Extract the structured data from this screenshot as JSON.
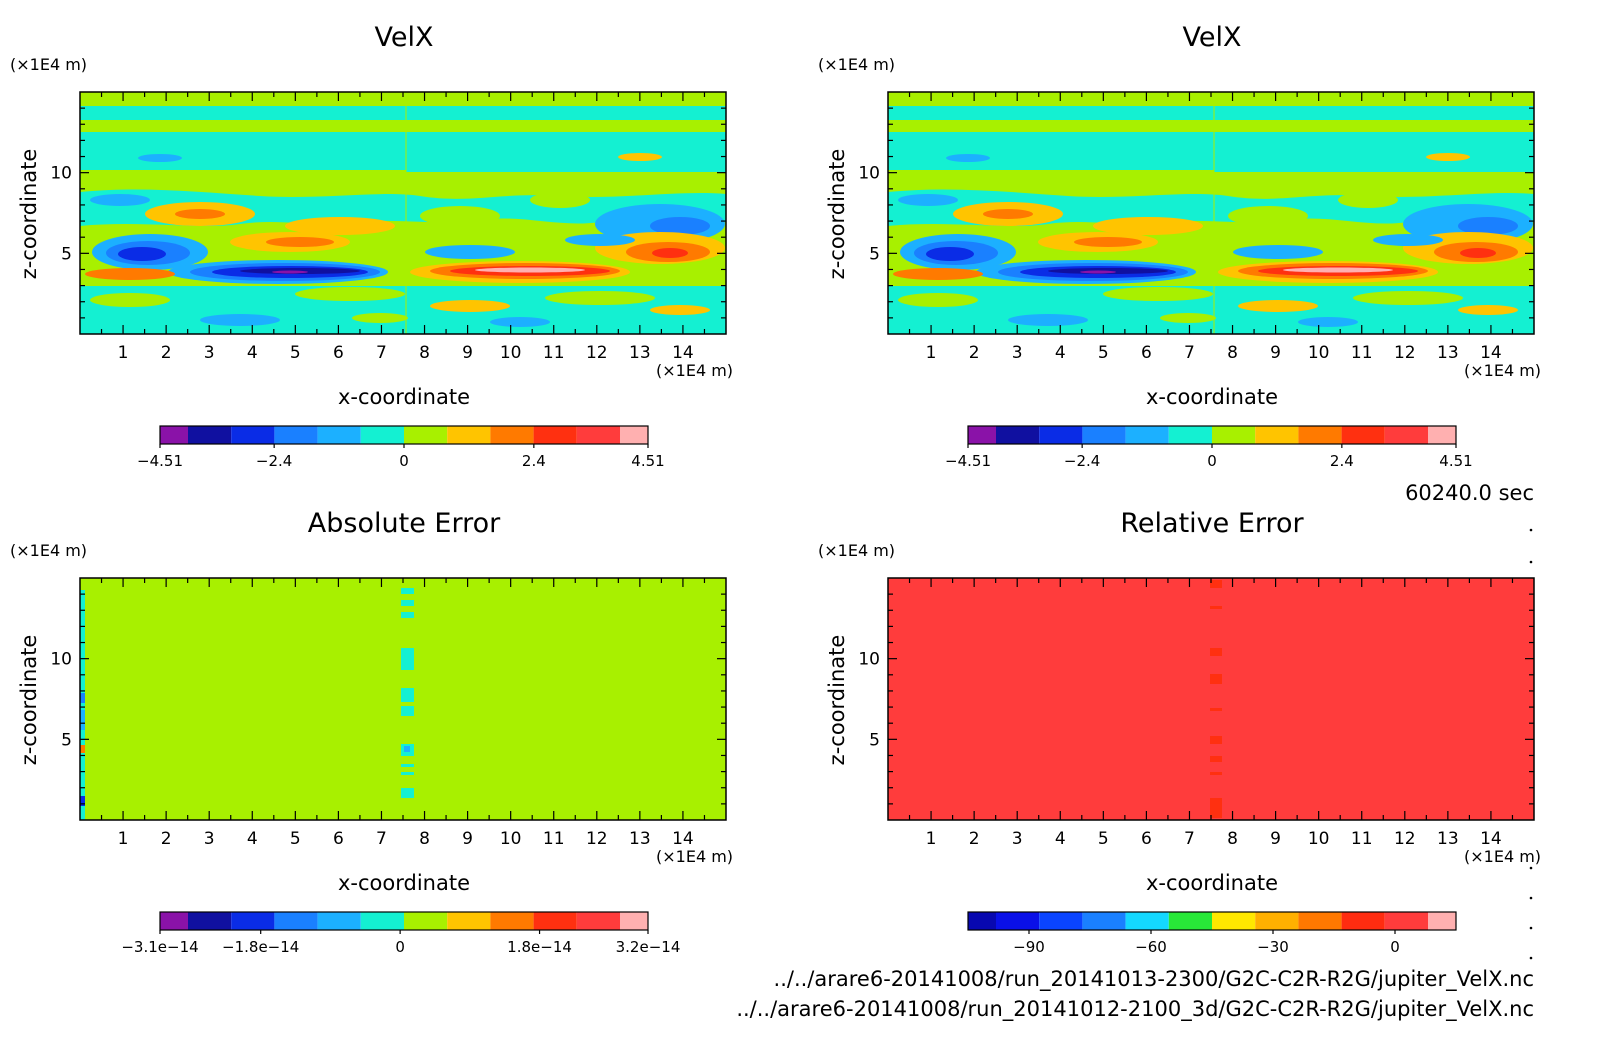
{
  "time_label": "60240.0 sec",
  "files": [
    "../../arare6-20141008/run_20141013-2300/G2C-C2R-R2G/jupiter_VelX.nc",
    "../../arare6-20141008/run_20141012-2100_3d/G2C-C2R-R2G/jupiter_VelX.nc"
  ],
  "chart_data": [
    {
      "type": "heatmap",
      "title": "VelX",
      "xlabel": "x-coordinate",
      "ylabel": "z-coordinate",
      "x_unit": "(×1E4 m)",
      "y_unit": "(×1E4 m)",
      "xlim": [
        0,
        15
      ],
      "ylim": [
        0,
        15
      ],
      "xticks": [
        "1",
        "2",
        "3",
        "4",
        "5",
        "6",
        "7",
        "8",
        "9",
        "10",
        "11",
        "12",
        "13",
        "14"
      ],
      "yticks": [
        "5",
        "10"
      ],
      "colorbar": {
        "colors": [
          "#8a12a8",
          "#1010a0",
          "#0a2ce6",
          "#1a80ff",
          "#1cb0ff",
          "#14f0d2",
          "#a8f000",
          "#ffc400",
          "#ff7a00",
          "#ff3010",
          "#ff3c3c",
          "#ffb0b0"
        ],
        "tick_labels": [
          "−4.51",
          "−2.4",
          "0",
          "2.4",
          "4.51"
        ],
        "tick_values": [
          -4.51,
          -2.4,
          0,
          2.4,
          4.51
        ],
        "range": [
          -4.51,
          4.51
        ]
      }
    },
    {
      "type": "heatmap",
      "title": "VelX",
      "xlabel": "x-coordinate",
      "ylabel": "z-coordinate",
      "x_unit": "(×1E4 m)",
      "y_unit": "(×1E4 m)",
      "xlim": [
        0,
        15
      ],
      "ylim": [
        0,
        15
      ],
      "xticks": [
        "1",
        "2",
        "3",
        "4",
        "5",
        "6",
        "7",
        "8",
        "9",
        "10",
        "11",
        "12",
        "13",
        "14"
      ],
      "yticks": [
        "5",
        "10"
      ],
      "colorbar": {
        "colors": [
          "#8a12a8",
          "#1010a0",
          "#0a2ce6",
          "#1a80ff",
          "#1cb0ff",
          "#14f0d2",
          "#a8f000",
          "#ffc400",
          "#ff7a00",
          "#ff3010",
          "#ff3c3c",
          "#ffb0b0"
        ],
        "tick_labels": [
          "−4.51",
          "−2.4",
          "0",
          "2.4",
          "4.51"
        ],
        "tick_values": [
          -4.51,
          -2.4,
          0,
          2.4,
          4.51
        ],
        "range": [
          -4.51,
          4.51
        ]
      }
    },
    {
      "type": "heatmap",
      "title": "Absolute Error",
      "xlabel": "x-coordinate",
      "ylabel": "z-coordinate",
      "x_unit": "(×1E4 m)",
      "y_unit": "(×1E4 m)",
      "xlim": [
        0,
        15
      ],
      "ylim": [
        0,
        15
      ],
      "xticks": [
        "1",
        "2",
        "3",
        "4",
        "5",
        "6",
        "7",
        "8",
        "9",
        "10",
        "11",
        "12",
        "13",
        "14"
      ],
      "yticks": [
        "5",
        "10"
      ],
      "colorbar": {
        "colors": [
          "#8a12a8",
          "#1010a0",
          "#0a2ce6",
          "#1a80ff",
          "#1cb0ff",
          "#14f0d2",
          "#a8f000",
          "#ffc400",
          "#ff7a00",
          "#ff3010",
          "#ff3c3c",
          "#ffb0b0"
        ],
        "tick_labels": [
          "−3.1e−14",
          "−1.8e−14",
          "0",
          "1.8e−14",
          "3.2e−14"
        ],
        "tick_values": [
          -3.1e-14,
          -1.8e-14,
          0,
          1.8e-14,
          3.2e-14
        ],
        "range": [
          -3.1e-14,
          3.2e-14
        ]
      }
    },
    {
      "type": "heatmap",
      "title": "Relative Error",
      "xlabel": "x-coordinate",
      "ylabel": "z-coordinate",
      "x_unit": "(×1E4 m)",
      "y_unit": "(×1E4 m)",
      "xlim": [
        0,
        15
      ],
      "ylim": [
        0,
        15
      ],
      "xticks": [
        "1",
        "2",
        "3",
        "4",
        "5",
        "6",
        "7",
        "8",
        "9",
        "10",
        "11",
        "12",
        "13",
        "14"
      ],
      "yticks": [
        "5",
        "10"
      ],
      "colorbar": {
        "colors": [
          "#0808b0",
          "#0a10e8",
          "#0a44ff",
          "#1a80ff",
          "#14d8ff",
          "#28e838",
          "#ffe800",
          "#ffb000",
          "#ff7800",
          "#ff2c10",
          "#ff3c3c",
          "#ffb0b0"
        ],
        "tick_labels": [
          "−90",
          "−60",
          "−30",
          "0"
        ],
        "tick_values": [
          -90,
          -60,
          -30,
          0
        ],
        "range": [
          -105,
          15
        ]
      }
    }
  ]
}
